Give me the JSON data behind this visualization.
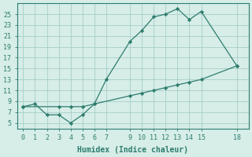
{
  "line1_x": [
    0,
    1,
    2,
    3,
    4,
    5,
    6,
    7,
    9,
    10,
    11,
    12,
    13,
    14,
    15,
    18
  ],
  "line1_y": [
    8,
    8.5,
    6.5,
    6.5,
    5,
    6.5,
    8.5,
    13,
    20,
    22,
    24.5,
    25,
    26,
    24,
    25.5,
    15.5
  ],
  "line2_x": [
    0,
    3,
    4,
    5,
    6,
    9,
    10,
    11,
    12,
    13,
    14,
    15,
    18
  ],
  "line2_y": [
    8,
    8,
    8,
    8,
    8.5,
    10,
    10.5,
    11,
    11.5,
    12,
    12.5,
    13,
    15.5
  ],
  "line_color": "#2e7d6e",
  "marker_color": "#2e7d6e",
  "bg_color": "#d6ede8",
  "grid_color": "#a8cdc7",
  "xlabel": "Humidex (Indice chaleur)",
  "xlim": [
    -0.5,
    19
  ],
  "ylim": [
    4,
    27
  ],
  "xticks": [
    0,
    1,
    2,
    3,
    4,
    5,
    6,
    7,
    9,
    10,
    11,
    12,
    13,
    14,
    15,
    18
  ],
  "yticks": [
    5,
    7,
    9,
    11,
    13,
    15,
    17,
    19,
    21,
    23,
    25
  ],
  "axis_fontsize": 7,
  "tick_fontsize": 6
}
